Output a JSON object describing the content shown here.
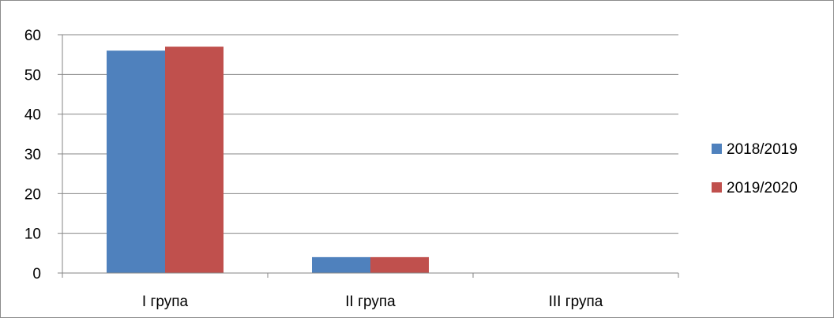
{
  "chart_data": {
    "type": "bar",
    "categories": [
      "I група",
      "II група",
      "III група"
    ],
    "series": [
      {
        "name": "2018/2019",
        "color": "#4f81bd",
        "values": [
          56,
          4,
          0
        ]
      },
      {
        "name": "2019/2020",
        "color": "#c0504d",
        "values": [
          57,
          4,
          0
        ]
      }
    ],
    "title": "",
    "xlabel": "",
    "ylabel": "",
    "ylim": [
      0,
      60
    ],
    "yticks": [
      "0",
      "10",
      "20",
      "30",
      "40",
      "50",
      "60"
    ],
    "grid": true,
    "legend_position": "right"
  }
}
